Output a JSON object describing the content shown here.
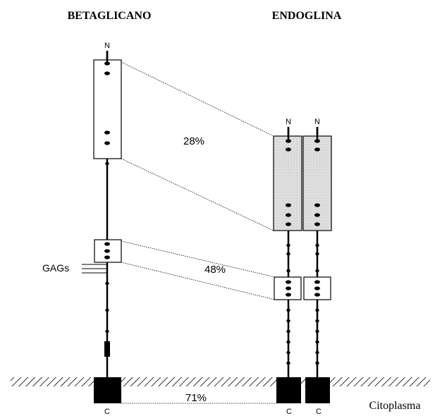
{
  "headers": {
    "left": "BETAGLICANO",
    "right": "ENDOGLINA"
  },
  "betaglicano": {
    "n": "N",
    "c": "C",
    "gags": "GAGs"
  },
  "endoglina": {
    "chains": [
      {
        "n": "N",
        "c": "C"
      },
      {
        "n": "N",
        "c": "C"
      }
    ]
  },
  "similarity": [
    "28%",
    "48%",
    "71%"
  ],
  "region": "Citoplasma"
}
